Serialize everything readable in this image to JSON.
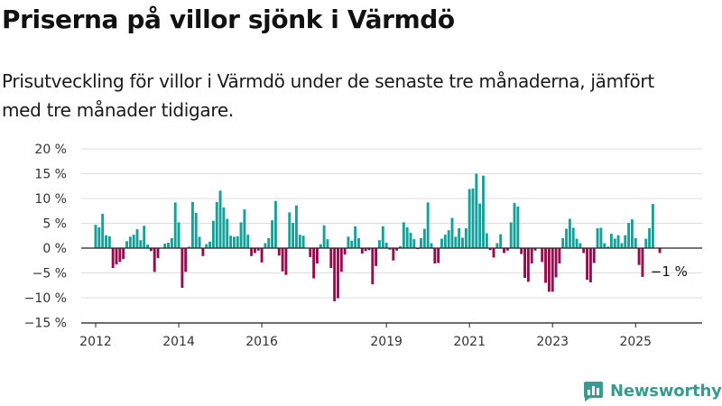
{
  "title": "Priserna på villor sjönk i Värmdö",
  "subtitle": "Prisutveckling för villor i Värmdö under de senaste tre månaderna, jämfört med tre månader tidigare.",
  "brand": "Newsworthy",
  "colors": {
    "positive": "#13a19a",
    "negative": "#960b4f",
    "grid": "#dddddd",
    "axis": "#222222",
    "brand": "#3a9a91"
  },
  "chart_data": {
    "type": "bar",
    "title": "Priserna på villor sjönk i Värmdö",
    "subtitle": "Prisutveckling för villor i Värmdö under de senaste tre månaderna, jämfört med tre månader tidigare.",
    "xlabel": "",
    "ylabel": "",
    "unit": "%",
    "ylim": [
      -15,
      20
    ],
    "yticks": [
      20,
      15,
      10,
      5,
      0,
      -5,
      -10,
      -15
    ],
    "ytick_labels": [
      "20 %",
      "15 %",
      "10 %",
      "5 %",
      "0 %",
      "−5 %",
      "−10 %",
      "−15 %"
    ],
    "x_start": "2012-01",
    "xlim": [
      "2012-01",
      "2026-10"
    ],
    "xticks": [
      "2012",
      "2014",
      "2016",
      "2019",
      "2021",
      "2023",
      "2025"
    ],
    "grid": "horizontal",
    "color_rule": "positive values teal, negative values magenta",
    "annotation": {
      "text": "−1 %",
      "month": "2025-10"
    },
    "monthly_values": [
      4.7,
      4.2,
      6.9,
      2.6,
      2.4,
      -4.0,
      -3.3,
      -2.8,
      -2.2,
      1.4,
      2.3,
      2.7,
      3.8,
      1.6,
      4.5,
      0.7,
      -0.6,
      -4.8,
      -2.0,
      0.1,
      0.9,
      1.1,
      2.0,
      9.2,
      5.2,
      -8.0,
      -4.8,
      0.3,
      9.3,
      7.1,
      2.3,
      -1.6,
      0.8,
      1.3,
      5.5,
      9.3,
      11.6,
      8.2,
      5.9,
      2.5,
      2.3,
      2.4,
      5.2,
      7.8,
      2.7,
      -1.6,
      -1.0,
      -0.5,
      -2.9,
      1.0,
      2.0,
      5.6,
      9.5,
      -1.5,
      -4.7,
      -5.4,
      7.2,
      5.1,
      8.6,
      2.7,
      2.5,
      0.1,
      -1.8,
      -6.1,
      -3.1,
      0.8,
      4.6,
      1.8,
      -4.0,
      -10.7,
      -10.1,
      -4.8,
      -1.3,
      2.3,
      1.5,
      4.4,
      2.0,
      -1.1,
      -0.6,
      -0.4,
      -7.3,
      -3.6,
      1.6,
      4.4,
      1.1,
      -0.3,
      -2.5,
      -0.5,
      0.4,
      5.2,
      4.2,
      3.1,
      1.8,
      -0.2,
      2.0,
      3.9,
      9.2,
      1.0,
      -3.1,
      -3.0,
      1.9,
      2.7,
      3.6,
      6.1,
      2.3,
      4.0,
      2.1,
      4.0,
      11.9,
      12.0,
      15.0,
      9.0,
      14.6,
      3.0,
      -0.4,
      -1.9,
      1.0,
      2.8,
      -1.0,
      -0.5,
      5.2,
      9.1,
      8.4,
      -1.2,
      -6.0,
      -6.8,
      -3.1,
      -0.5,
      -0.1,
      -2.8,
      -7.0,
      -8.8,
      -8.8,
      -5.9,
      -3.1,
      2.0,
      3.9,
      5.9,
      4.1,
      1.9,
      1.0,
      -1.0,
      -6.4,
      -6.9,
      -3.0,
      4.0,
      4.1,
      1.0,
      0.3,
      2.9,
      1.9,
      2.6,
      1.0,
      2.6,
      5.1,
      5.8,
      2.0,
      -3.4,
      -5.8,
      1.9,
      4.0,
      8.9,
      0.0,
      -1.0
    ]
  }
}
